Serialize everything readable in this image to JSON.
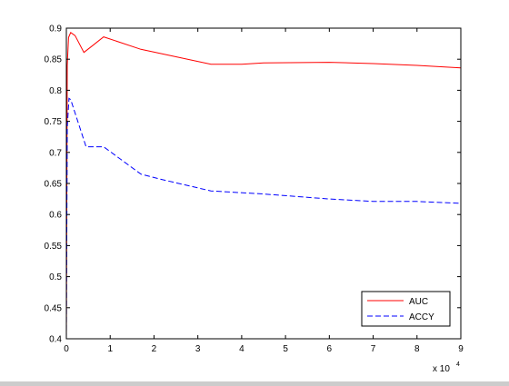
{
  "chart_data": {
    "type": "line",
    "title": "",
    "xlabel": "",
    "ylabel": "",
    "x_exponent_label": "x 10",
    "x_exponent_power": "4",
    "xlim": [
      0,
      90000
    ],
    "ylim": [
      0.4,
      0.9
    ],
    "grid": false,
    "legend_position": "bottom-right",
    "x_ticks": [
      {
        "value": 0,
        "label": "0"
      },
      {
        "value": 10000,
        "label": "1"
      },
      {
        "value": 20000,
        "label": "2"
      },
      {
        "value": 30000,
        "label": "3"
      },
      {
        "value": 40000,
        "label": "4"
      },
      {
        "value": 50000,
        "label": "5"
      },
      {
        "value": 60000,
        "label": "6"
      },
      {
        "value": 70000,
        "label": "7"
      },
      {
        "value": 80000,
        "label": "8"
      },
      {
        "value": 90000,
        "label": "9"
      }
    ],
    "y_ticks": [
      {
        "value": 0.4,
        "label": "0.4"
      },
      {
        "value": 0.45,
        "label": "0.45"
      },
      {
        "value": 0.5,
        "label": "0.5"
      },
      {
        "value": 0.55,
        "label": "0.55"
      },
      {
        "value": 0.6,
        "label": "0.6"
      },
      {
        "value": 0.65,
        "label": "0.65"
      },
      {
        "value": 0.7,
        "label": "0.7"
      },
      {
        "value": 0.75,
        "label": "0.75"
      },
      {
        "value": 0.8,
        "label": "0.8"
      },
      {
        "value": 0.85,
        "label": "0.85"
      },
      {
        "value": 0.9,
        "label": "0.9"
      }
    ],
    "series": [
      {
        "name": "AUC",
        "color": "#ff0000",
        "line_style": "solid",
        "points": [
          [
            0,
            0.4
          ],
          [
            200,
            0.84
          ],
          [
            500,
            0.885
          ],
          [
            1000,
            0.893
          ],
          [
            2000,
            0.888
          ],
          [
            4000,
            0.861
          ],
          [
            6000,
            0.872
          ],
          [
            8500,
            0.886
          ],
          [
            17000,
            0.866
          ],
          [
            33000,
            0.842
          ],
          [
            40000,
            0.842
          ],
          [
            45000,
            0.844
          ],
          [
            60000,
            0.845
          ],
          [
            70000,
            0.843
          ],
          [
            80000,
            0.84
          ],
          [
            90000,
            0.836
          ]
        ]
      },
      {
        "name": "ACCY",
        "color": "#0000ff",
        "line_style": "dashed",
        "points": [
          [
            0,
            0.4
          ],
          [
            200,
            0.74
          ],
          [
            600,
            0.787
          ],
          [
            1000,
            0.785
          ],
          [
            4500,
            0.709
          ],
          [
            8500,
            0.709
          ],
          [
            17000,
            0.665
          ],
          [
            22000,
            0.656
          ],
          [
            33000,
            0.638
          ],
          [
            45000,
            0.633
          ],
          [
            60000,
            0.625
          ],
          [
            70000,
            0.621
          ],
          [
            80000,
            0.621
          ],
          [
            90000,
            0.618
          ]
        ]
      }
    ]
  }
}
